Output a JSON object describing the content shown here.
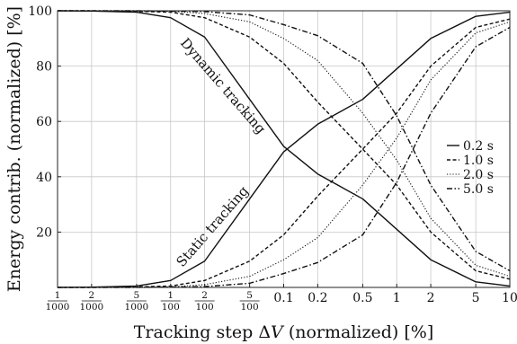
{
  "chart_data": {
    "type": "line",
    "xscale": "log",
    "x": [
      0.001,
      0.002,
      0.005,
      0.01,
      0.02,
      0.05,
      0.1,
      0.2,
      0.5,
      1,
      2,
      5,
      10
    ],
    "x_tick_labels": [
      {
        "value": 0.001,
        "num": "1",
        "den": "1000"
      },
      {
        "value": 0.002,
        "num": "2",
        "den": "1000"
      },
      {
        "value": 0.005,
        "num": "5",
        "den": "1000"
      },
      {
        "value": 0.01,
        "num": "1",
        "den": "100"
      },
      {
        "value": 0.02,
        "num": "2",
        "den": "100"
      },
      {
        "value": 0.05,
        "num": "5",
        "den": "100"
      },
      {
        "value": 0.1,
        "text": "0.1"
      },
      {
        "value": 0.2,
        "text": "0.2"
      },
      {
        "value": 0.5,
        "text": "0.5"
      },
      {
        "value": 1,
        "text": "1"
      },
      {
        "value": 2,
        "text": "2"
      },
      {
        "value": 5,
        "text": "5"
      },
      {
        "value": 10,
        "text": "10"
      }
    ],
    "y_ticks": [
      20,
      40,
      60,
      80,
      100
    ],
    "xlim": [
      0.001,
      10
    ],
    "ylim": [
      0,
      100
    ],
    "xlabel": "Tracking step ΔV (normalized) [%]",
    "ylabel": "Energy contrib. (normalized) [%]",
    "grid": true,
    "legend_position": "right",
    "series": [
      {
        "name": "0.2 s",
        "dash": "solid",
        "group": "dynamic",
        "values": [
          100,
          99.9,
          99.5,
          97.5,
          90.5,
          68,
          51,
          41,
          32,
          21,
          10,
          2,
          0.5
        ]
      },
      {
        "name": "1.0 s",
        "dash": "dashed",
        "group": "dynamic",
        "values": [
          100,
          100,
          99.8,
          99.5,
          97.5,
          90.5,
          81,
          67,
          50,
          37,
          20,
          6,
          3
        ]
      },
      {
        "name": "2.0 s",
        "dash": "dotted",
        "group": "dynamic",
        "values": [
          100,
          100,
          100,
          99.8,
          99,
          96,
          90,
          82,
          63,
          46,
          25,
          8,
          4
        ]
      },
      {
        "name": "5.0 s",
        "dash": "dashdot",
        "group": "dynamic",
        "values": [
          100,
          100,
          100,
          99.9,
          99.7,
          98.5,
          95,
          91,
          81,
          62,
          37,
          13,
          6
        ]
      },
      {
        "name": "0.2 s",
        "dash": "solid",
        "group": "static",
        "values": [
          0,
          0.1,
          0.5,
          2.5,
          9.5,
          32,
          49,
          59,
          68,
          79,
          90,
          98,
          99.5
        ]
      },
      {
        "name": "1.0 s",
        "dash": "dashed",
        "group": "static",
        "values": [
          0,
          0,
          0.2,
          0.5,
          2.5,
          9.5,
          19,
          33,
          50,
          63,
          80,
          94,
          97
        ]
      },
      {
        "name": "2.0 s",
        "dash": "dotted",
        "group": "static",
        "values": [
          0,
          0,
          0,
          0.2,
          1,
          4,
          10,
          18,
          37,
          54,
          75,
          92,
          96
        ]
      },
      {
        "name": "5.0 s",
        "dash": "dashdot",
        "group": "static",
        "values": [
          0,
          0,
          0,
          0.1,
          0.3,
          1.5,
          5,
          9,
          19,
          38,
          63,
          87,
          94
        ]
      }
    ],
    "legend": [
      "0.2 s",
      "1.0 s",
      "2.0 s",
      "5.0 s"
    ],
    "annotations": [
      "Dynamic tracking",
      "Static tracking"
    ]
  }
}
